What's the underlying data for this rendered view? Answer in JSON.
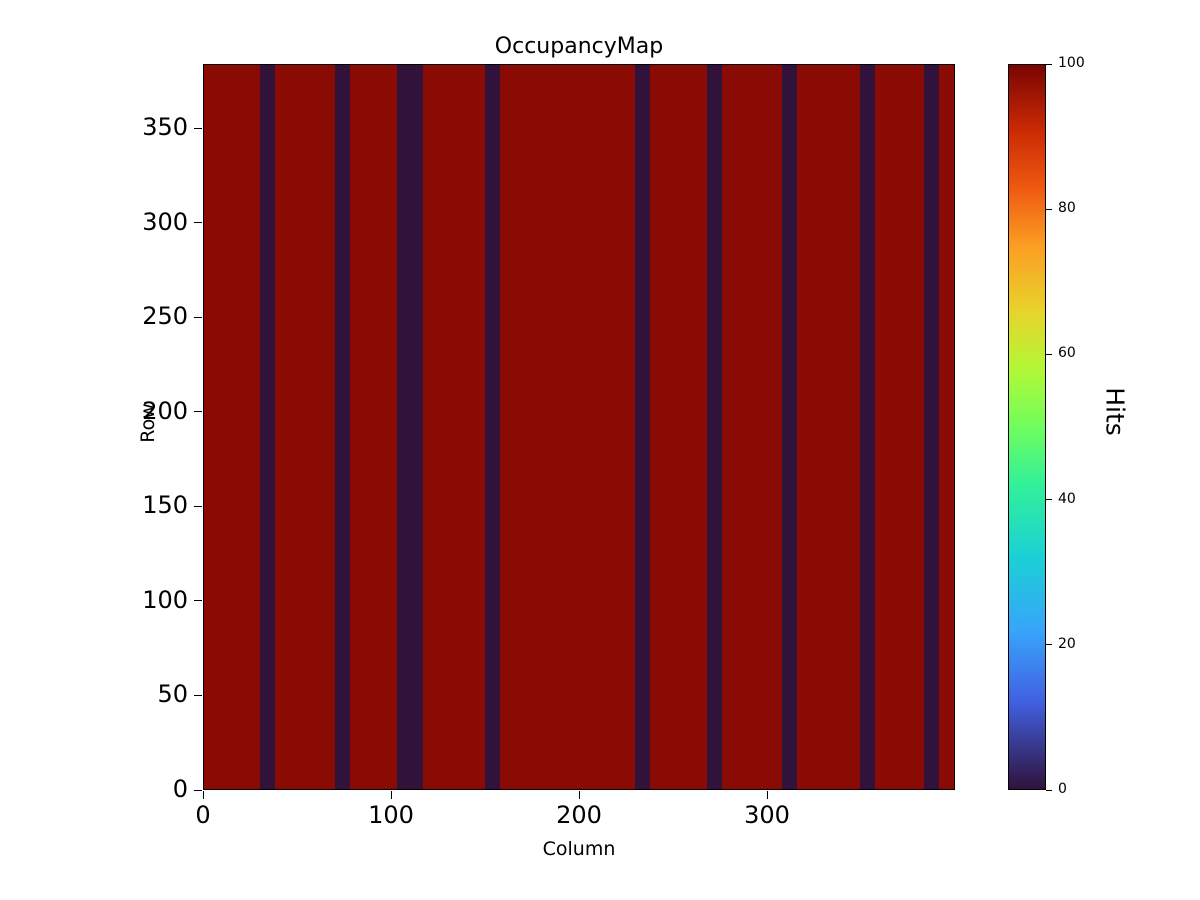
{
  "figure": {
    "title": "OccupancyMap",
    "xlabel": "Column",
    "ylabel": "Row",
    "colorbar_label": "Hits"
  },
  "chart_data": {
    "type": "heatmap",
    "title": "OccupancyMap",
    "xlabel": "Column",
    "ylabel": "Row",
    "x_range": [
      0,
      400
    ],
    "y_range": [
      0,
      384
    ],
    "x_ticks": [
      0,
      100,
      200,
      300
    ],
    "y_ticks": [
      0,
      50,
      100,
      150,
      200,
      250,
      300,
      350
    ],
    "background_value": 100,
    "stripe_value": 0,
    "stripes": [
      {
        "start": 30,
        "end": 38
      },
      {
        "start": 70,
        "end": 78
      },
      {
        "start": 103,
        "end": 117
      },
      {
        "start": 150,
        "end": 158
      },
      {
        "start": 230,
        "end": 238
      },
      {
        "start": 268,
        "end": 276
      },
      {
        "start": 308,
        "end": 316
      },
      {
        "start": 350,
        "end": 358
      },
      {
        "start": 384,
        "end": 392
      }
    ],
    "colors": {
      "occupied": "#8a0b03",
      "empty": "#30123b"
    },
    "colorbar": {
      "label": "Hits",
      "range": [
        0,
        100
      ],
      "ticks": [
        0,
        20,
        40,
        60,
        80,
        100
      ],
      "colormap": "turbo",
      "colormap_stops": [
        {
          "pos": 0,
          "color": "#30123b"
        },
        {
          "pos": 12,
          "color": "#4160e1"
        },
        {
          "pos": 22,
          "color": "#38a5fb"
        },
        {
          "pos": 32,
          "color": "#1bd0d5"
        },
        {
          "pos": 42,
          "color": "#31f199"
        },
        {
          "pos": 50,
          "color": "#70fd5d"
        },
        {
          "pos": 58,
          "color": "#b2f836"
        },
        {
          "pos": 66,
          "color": "#e8d32b"
        },
        {
          "pos": 75,
          "color": "#fb9e23"
        },
        {
          "pos": 83,
          "color": "#ef5911"
        },
        {
          "pos": 91,
          "color": "#ca2a04"
        },
        {
          "pos": 100,
          "color": "#7a0403"
        }
      ],
      "legend_position": "right"
    },
    "grid": false
  }
}
